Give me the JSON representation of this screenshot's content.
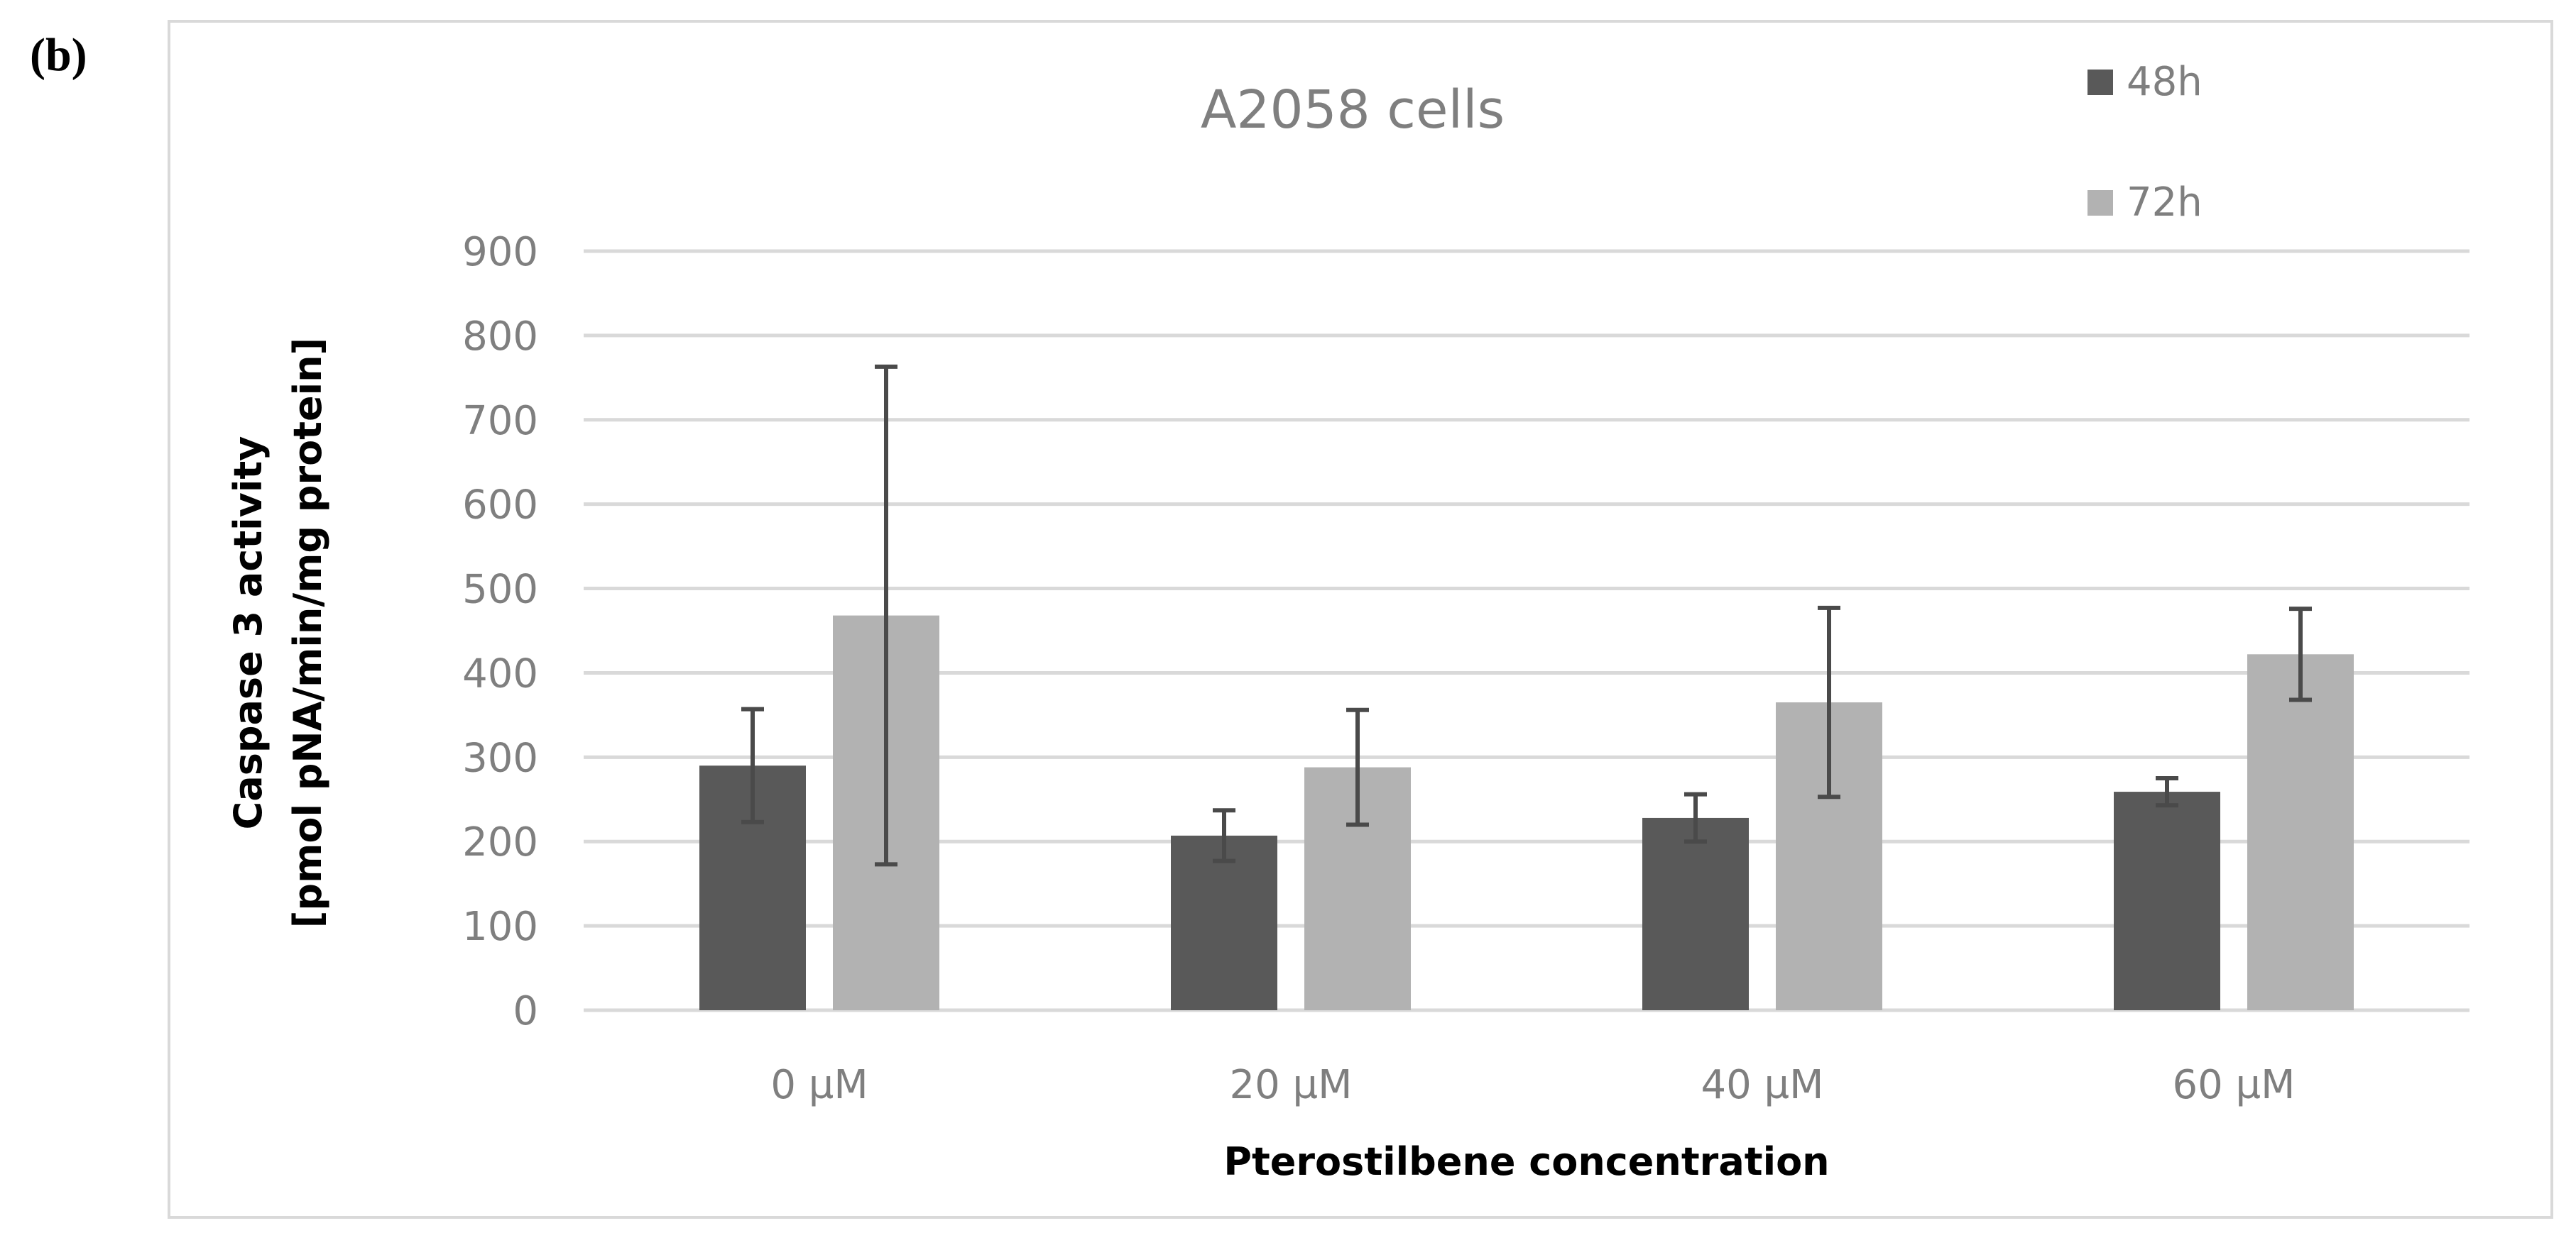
{
  "panel_label": "(b)",
  "chart_data": {
    "type": "bar",
    "title": "A2058 cells",
    "xlabel": "Pterostilbene concentration",
    "ylabel_lines": [
      "Caspase 3 activity",
      "[pmol pNA/min/mg protein]"
    ],
    "categories": [
      "0 µM",
      "20 µM",
      "40 µM",
      "60 µM"
    ],
    "ylim": [
      0,
      900
    ],
    "yticks": [
      0,
      100,
      200,
      300,
      400,
      500,
      600,
      700,
      800,
      900
    ],
    "grid": true,
    "legend_position": "top-right",
    "series": [
      {
        "name": "48h",
        "color": "#595959",
        "values": [
          290,
          207,
          228,
          259
        ],
        "error": [
          67,
          30,
          28,
          16
        ]
      },
      {
        "name": "72h",
        "color": "#b2b2b2",
        "values": [
          468,
          288,
          365,
          422
        ],
        "error": [
          295,
          68,
          112,
          54
        ]
      }
    ],
    "error_bar_color": "#4a4a4a"
  }
}
